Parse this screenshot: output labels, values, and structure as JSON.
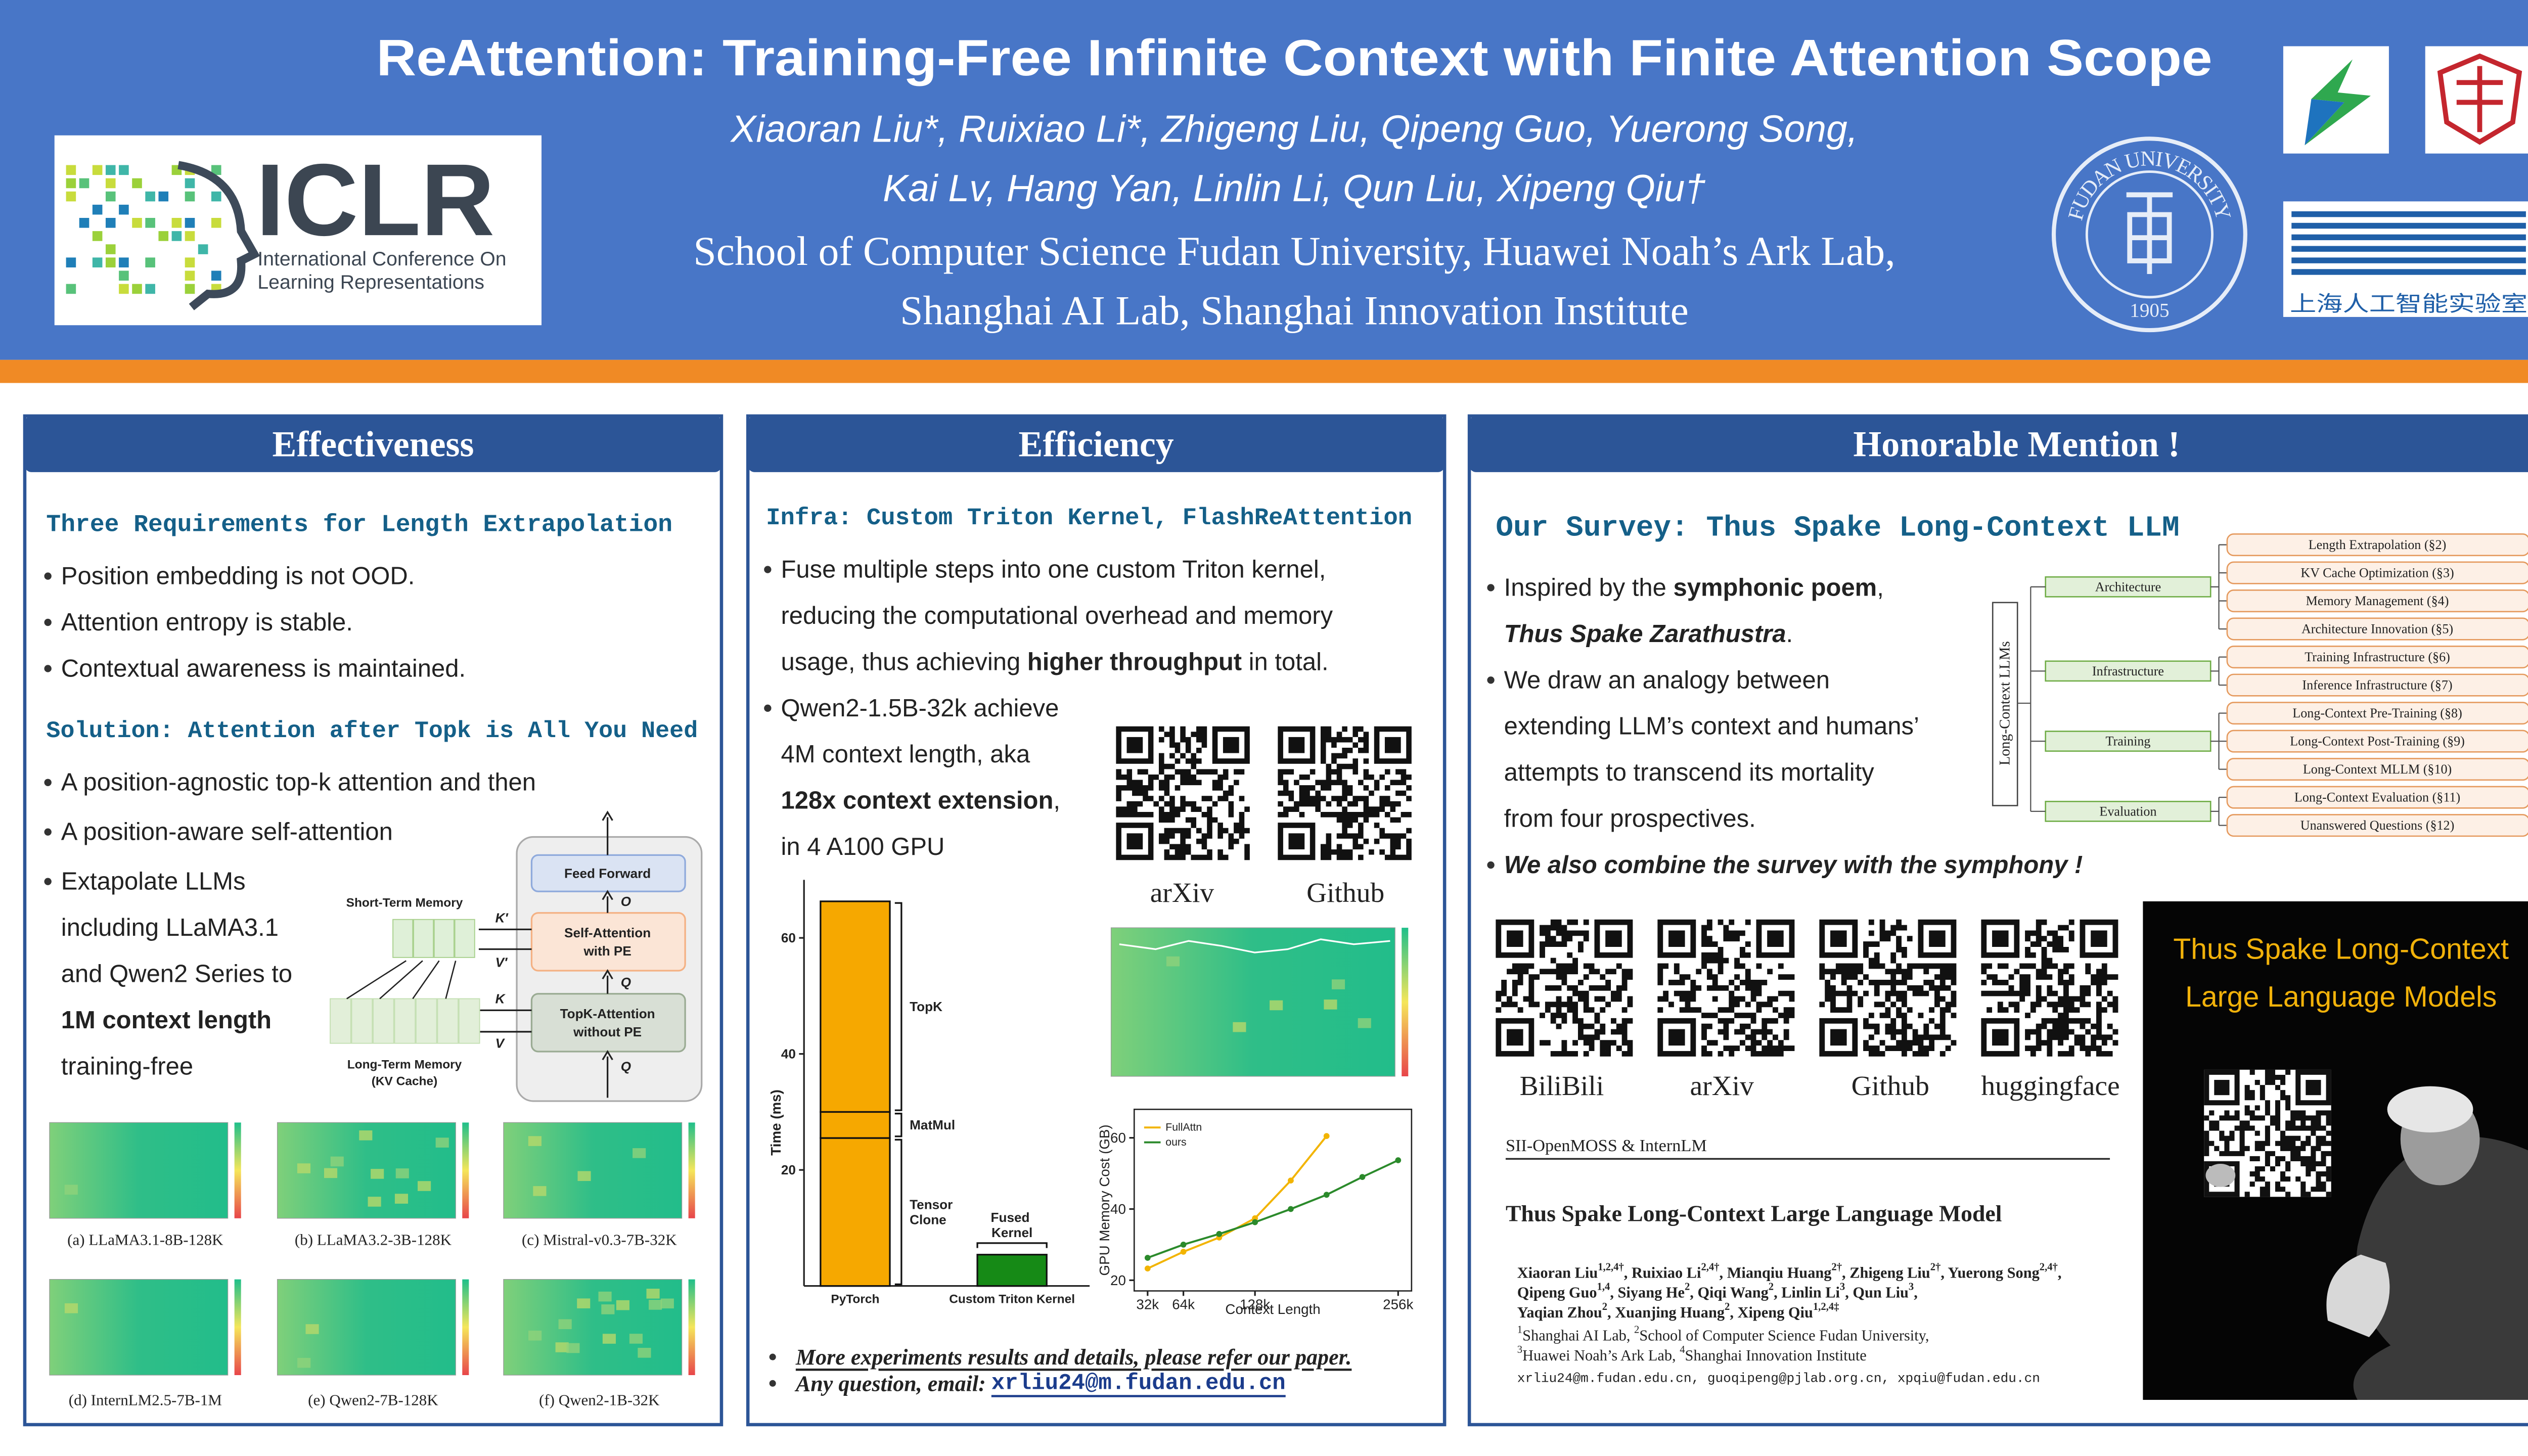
{
  "header": {
    "title": "ReAttention: Training-Free Infinite Context with Finite Attention Scope",
    "authors": [
      "Xiaoran Liu*, Ruixiao Li*, Zhigeng Liu, Qipeng Guo, Yuerong Song,",
      "Kai Lv, Hang Yan, Linlin Li, Qun Liu, Xipeng Qiu†"
    ],
    "affiliations": [
      "School of Computer Science Fudan University, Huawei Noah’s Ark Lab,",
      "Shanghai AI Lab, Shanghai Innovation Institute"
    ],
    "iclr": {
      "name": "ICLR",
      "subtitle": [
        "International Conference On",
        "Learning Representations"
      ]
    },
    "fudan": {
      "name": "FUDAN UNIVERSITY",
      "year": "1905"
    },
    "shlab": "上海人工智能实验室"
  },
  "effectiveness": {
    "heading": "Effectiveness",
    "requirements": {
      "title": "Three Requirements for Length Extrapolation",
      "bullets": [
        [
          "Position embedding is not OOD."
        ],
        [
          "Attention entropy is stable."
        ],
        [
          "Contextual awareness is maintained."
        ]
      ]
    },
    "solution": {
      "title": "Solution: Attention after Topk is All You Need",
      "bullets": [
        [
          "A position-agnostic top-k attention and then"
        ],
        [
          "A position-aware self-attention"
        ],
        [
          "Extapolate LLMs",
          "including LLaMA3.1",
          "and Qwen2 Series to",
          [
            {
              "bold": "1M context length"
            }
          ],
          "training-free"
        ]
      ]
    },
    "diagram": {
      "short_term": "Short-Term Memory",
      "long_term": [
        "Long-Term Memory",
        "(KV Cache)"
      ],
      "feed_forward": "Feed Forward",
      "self_attention": [
        "Self-Attention",
        "with PE"
      ],
      "topk_attention": [
        "TopK-Attention",
        "without PE"
      ],
      "symbols": {
        "o": "O",
        "q_mid": "Q",
        "q_in": "Q",
        "k_prime": "K′",
        "v_prime": "V′",
        "k": "K",
        "v": "V"
      }
    },
    "heatmap_captions": [
      "(a) LLaMA3.1-8B-128K",
      "(b) LLaMA3.2-3B-128K",
      "(c) Mistral-v0.3-7B-32K",
      "(d) InternLM2.5-7B-1M",
      "(e) Qwen2-7B-128K",
      "(f) Qwen2-1B-32K"
    ]
  },
  "efficiency": {
    "heading": "Efficiency",
    "title": "Infra: Custom Triton Kernel, FlashReAttention",
    "bullets": [
      [
        "Fuse multiple steps into one custom Triton kernel,",
        "reducing the computational overhead and memory",
        [
          "usage, thus achieving ",
          {
            "bold": "higher throughput"
          },
          " in total."
        ]
      ],
      [
        "Qwen2-1.5B-32k achieve",
        "4M context length, aka",
        [
          {
            "bold": "128x context extension"
          },
          ","
        ],
        "in 4 A100 GPU"
      ]
    ],
    "qr_labels": [
      "arXiv",
      "Github"
    ],
    "notes": [
      [
        {
          "bold_italic_u": "More experiments results and details, please refer our paper."
        }
      ],
      [
        {
          "bold_italic": "Any question, email: "
        },
        {
          "email": "xrliu24@m.fudan.edu.cn"
        }
      ]
    ]
  },
  "honorable": {
    "heading": "Honorable Mention !",
    "title": "Our Survey: Thus Spake Long-Context LLM",
    "bullets": [
      [
        [
          "Inspired by the ",
          {
            "bold": "symphonic poem"
          },
          ","
        ],
        [
          {
            "bold_italic": "Thus Spake Zarathustra"
          },
          "."
        ]
      ],
      [
        "We draw an analogy between",
        "extending LLM’s context and humans’",
        "attempts to transcend its mortality",
        "from four prospectives."
      ],
      [
        [
          {
            "bold_italic": "We also combine the survey with the symphony !"
          }
        ]
      ]
    ],
    "taxonomy": {
      "root": "Long-Context LLMs",
      "branches": [
        {
          "label": "Architecture",
          "leaves": [
            "Length Extrapolation (§2)",
            "KV Cache Optimization (§3)",
            "Memory Management (§4)",
            "Architecture Innovation (§5)"
          ]
        },
        {
          "label": "Infrastructure",
          "leaves": [
            "Training Infrastructure (§6)",
            "Inference Infrastructure (§7)"
          ]
        },
        {
          "label": "Training",
          "leaves": [
            "Long-Context Pre-Training (§8)",
            "Long-Context Post-Training (§9)",
            "Long-Context MLLM (§10)"
          ]
        },
        {
          "label": "Evaluation",
          "leaves": [
            "Long-Context Evaluation (§11)",
            "Unanswered Questions (§12)"
          ]
        }
      ]
    },
    "qr_labels": [
      "BiliBili",
      "arXiv",
      "Github",
      "huggingface"
    ],
    "paper": {
      "org": "SII-OpenMOSS & InternLM",
      "title": "Thus Spake Long-Context Large Language Model",
      "authors": [
        [
          "Xiaoran Liu",
          {
            "sup": "1,2,4†"
          },
          ", Ruixiao Li",
          {
            "sup": "2,4†"
          },
          ", Mianqiu Huang",
          {
            "sup": "2†"
          },
          ", Zhigeng Liu",
          {
            "sup": "2†"
          },
          ", Yuerong Song",
          {
            "sup": "2,4†"
          },
          ","
        ],
        [
          "Qipeng Guo",
          {
            "sup": "1,4"
          },
          ", Siyang He",
          {
            "sup": "2"
          },
          ", Qiqi Wang",
          {
            "sup": "2"
          },
          ", Linlin Li",
          {
            "sup": "3"
          },
          ", Qun Liu",
          {
            "sup": "3"
          },
          ","
        ],
        [
          "Yaqian Zhou",
          {
            "sup": "2"
          },
          ", Xuanjing Huang",
          {
            "sup": "2"
          },
          ", Xipeng Qiu",
          {
            "sup": "1,2,4‡"
          }
        ]
      ],
      "affiliations": [
        [
          {
            "sup": "1"
          },
          "Shanghai AI Lab, ",
          {
            "sup": "2"
          },
          "School of Computer Science Fudan University,"
        ],
        [
          {
            "sup": "3"
          },
          "Huawei Noah’s Ark Lab, ",
          {
            "sup": "4"
          },
          "Shanghai Innovation Institute"
        ]
      ],
      "emails": "xrliu24@m.fudan.edu.cn, guoqipeng@pjlab.org.cn, xpqiu@fudan.edu.cn"
    },
    "book": {
      "title": [
        "Thus Spake Long-Context",
        "Large Language Models"
      ]
    }
  },
  "chart_data": [
    {
      "type": "bar",
      "stacked": true,
      "y_label": "Time (ms)",
      "categories": [
        "PyTorch",
        "Custom Triton Kernel"
      ],
      "series": [
        {
          "name": "Tensor Clone",
          "color": "#f6a800",
          "values": [
            25.5,
            null
          ]
        },
        {
          "name": "MatMul",
          "color": "#f6a800",
          "values": [
            4.5,
            null
          ]
        },
        {
          "name": "TopK",
          "color": "#f6a800",
          "values": [
            36.3,
            null
          ]
        },
        {
          "name": "Fused Kernel",
          "color": "#168a16",
          "values": [
            null,
            5.4
          ]
        }
      ],
      "ylim": [
        0,
        70
      ],
      "yticks": [
        20,
        40,
        60
      ]
    },
    {
      "type": "line",
      "x_label": "Context Length",
      "y_label": "GPU Memory Cost (GB)",
      "legend": "upper left",
      "series": [
        {
          "name": "FullAttn",
          "color": "#f2b400",
          "x": [
            32,
            64,
            96,
            128,
            160,
            192
          ],
          "values": [
            23.3,
            28,
            32,
            37.4,
            48,
            60.5
          ]
        },
        {
          "name": "ours",
          "color": "#2b8a2b",
          "x": [
            32,
            64,
            96,
            128,
            160,
            192,
            224,
            256
          ],
          "values": [
            26.3,
            30,
            33,
            36.3,
            40,
            44,
            49,
            53.7
          ]
        }
      ],
      "xlim": [
        20,
        268
      ],
      "xticks": [
        {
          "value": 32,
          "label": "32k"
        },
        {
          "value": 64,
          "label": "64k"
        },
        {
          "value": 128,
          "label": "128k"
        },
        {
          "value": 256,
          "label": "256k"
        }
      ],
      "ylim": [
        17,
        68
      ],
      "yticks": [
        20,
        40,
        60
      ]
    }
  ]
}
